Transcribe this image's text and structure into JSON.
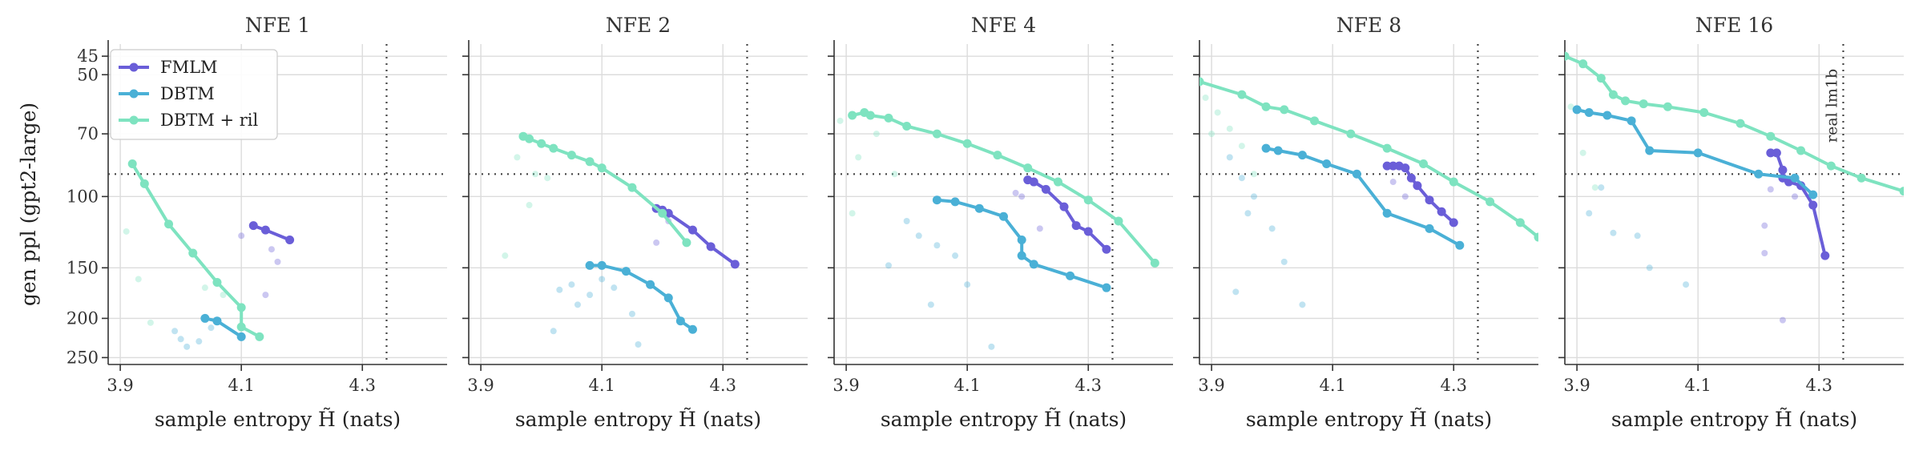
{
  "chart_data": {
    "type": "line",
    "ylabel": "gen ppl (gpt2-large)",
    "xlabel": "sample entropy H̃ (nats)",
    "xlim": [
      3.88,
      4.44
    ],
    "ylim": [
      260,
      42
    ],
    "yscale": "log",
    "xticks": [
      "3.9",
      "4.1",
      "4.3"
    ],
    "yticks": [
      "45",
      "50",
      "70",
      "100",
      "150",
      "200",
      "250"
    ],
    "grid": true,
    "legend_position": "top-left",
    "reference_lines": {
      "entropy": 4.34,
      "ppl": 88,
      "entropy_label": "real lm1b"
    },
    "colors": {
      "FMLM": "#6a5ed8",
      "DBTM": "#4ab0d6",
      "DBTM + ril": "#7ee3c0"
    },
    "panels": [
      {
        "title": "NFE 1",
        "series": [
          {
            "name": "FMLM",
            "x": [
              4.12,
              4.14,
              4.18
            ],
            "y": [
              118,
              121,
              128
            ]
          },
          {
            "name": "DBTM",
            "x": [
              4.04,
              4.06,
              4.1
            ],
            "y": [
              200,
              203,
              222
            ]
          },
          {
            "name": "DBTM + ril",
            "x": [
              3.92,
              3.94,
              3.98,
              4.02,
              4.06,
              4.1,
              4.1,
              4.13
            ],
            "y": [
              83,
              93,
              117,
              138,
              163,
              188,
              210,
              222
            ]
          }
        ],
        "scatter": [
          {
            "series": "DBTM + ril",
            "x": [
              3.91,
              3.93,
              4.04,
              4.07,
              3.95
            ],
            "y": [
              122,
              160,
              168,
              175,
              205
            ]
          },
          {
            "series": "DBTM",
            "x": [
              3.99,
              4.0,
              4.01,
              4.03,
              4.05
            ],
            "y": [
              215,
              225,
              235,
              228,
              211
            ]
          },
          {
            "series": "FMLM",
            "x": [
              4.1,
              4.15,
              4.16,
              4.14
            ],
            "y": [
              125,
              135,
              145,
              175
            ]
          }
        ]
      },
      {
        "title": "NFE 2",
        "series": [
          {
            "name": "FMLM",
            "x": [
              4.19,
              4.2,
              4.21,
              4.25,
              4.28,
              4.32
            ],
            "y": [
              107,
              108,
              110,
              121,
              133,
              147
            ]
          },
          {
            "name": "DBTM",
            "x": [
              4.08,
              4.1,
              4.14,
              4.18,
              4.21,
              4.23,
              4.25
            ],
            "y": [
              148,
              148,
              153,
              165,
              178,
              203,
              213
            ]
          },
          {
            "name": "DBTM + ril",
            "x": [
              3.97,
              3.98,
              4.0,
              4.02,
              4.05,
              4.08,
              4.1,
              4.15,
              4.2,
              4.24
            ],
            "y": [
              71,
              72,
              74,
              76,
              79,
              82,
              85,
              95,
              110,
              130
            ]
          }
        ],
        "scatter": [
          {
            "series": "DBTM + ril",
            "x": [
              3.96,
              3.99,
              3.94,
              3.98,
              4.01
            ],
            "y": [
              80,
              88,
              140,
              105,
              90
            ]
          },
          {
            "series": "DBTM",
            "x": [
              4.03,
              4.05,
              4.06,
              4.08,
              4.1,
              4.12,
              4.15,
              4.16,
              4.02
            ],
            "y": [
              170,
              165,
              185,
              175,
              160,
              168,
              195,
              232,
              215
            ]
          },
          {
            "name_ref": "",
            "series": "FMLM",
            "x": [
              4.21,
              4.19
            ],
            "y": [
              115,
              130
            ]
          }
        ]
      },
      {
        "title": "NFE 4",
        "series": [
          {
            "name": "FMLM",
            "x": [
              4.2,
              4.21,
              4.23,
              4.26,
              4.28,
              4.3,
              4.33
            ],
            "y": [
              91,
              92,
              96,
              106,
              118,
              122,
              135
            ]
          },
          {
            "name": "DBTM",
            "x": [
              4.05,
              4.08,
              4.12,
              4.16,
              4.19,
              4.19,
              4.21,
              4.27,
              4.33
            ],
            "y": [
              102,
              103,
              107,
              112,
              128,
              140,
              147,
              157,
              168
            ]
          },
          {
            "name": "DBTM + ril",
            "x": [
              3.91,
              3.93,
              3.94,
              3.97,
              4.0,
              4.05,
              4.1,
              4.15,
              4.2,
              4.25,
              4.3,
              4.35,
              4.41
            ],
            "y": [
              63,
              62,
              63,
              64,
              67,
              70,
              74,
              79,
              85,
              92,
              102,
              115,
              146
            ]
          }
        ],
        "scatter": [
          {
            "series": "DBTM + ril",
            "x": [
              3.89,
              3.92,
              3.95,
              3.98,
              3.91
            ],
            "y": [
              65,
              80,
              70,
              88,
              110
            ]
          },
          {
            "series": "DBTM",
            "x": [
              4.0,
              4.02,
              4.05,
              4.08,
              4.1,
              3.97,
              4.04,
              4.14
            ],
            "y": [
              115,
              125,
              132,
              140,
              165,
              148,
              185,
              235
            ]
          },
          {
            "series": "FMLM",
            "x": [
              4.18,
              4.19,
              4.22
            ],
            "y": [
              98,
              100,
              120
            ]
          }
        ]
      },
      {
        "title": "NFE 8",
        "series": [
          {
            "name": "FMLM",
            "x": [
              4.19,
              4.2,
              4.21,
              4.22,
              4.23,
              4.24,
              4.26,
              4.28,
              4.3
            ],
            "y": [
              84,
              84,
              84,
              85,
              90,
              94,
              102,
              109,
              116
            ]
          },
          {
            "name": "DBTM",
            "x": [
              3.99,
              4.01,
              4.05,
              4.09,
              4.14,
              4.19,
              4.26,
              4.31
            ],
            "y": [
              76,
              77,
              79,
              83,
              88,
              110,
              120,
              132
            ]
          },
          {
            "name": "DBTM + ril",
            "x": [
              3.88,
              3.95,
              3.99,
              4.02,
              4.07,
              4.13,
              4.19,
              4.25,
              4.3,
              4.36,
              4.41,
              4.44
            ],
            "y": [
              52,
              56,
              60,
              61,
              65,
              70,
              76,
              83,
              92,
              103,
              116,
              126
            ]
          }
        ],
        "scatter": [
          {
            "series": "DBTM + ril",
            "x": [
              3.89,
              3.91,
              3.93,
              3.95,
              3.97,
              3.9
            ],
            "y": [
              57,
              62,
              68,
              75,
              88,
              70
            ]
          },
          {
            "series": "DBTM",
            "x": [
              3.93,
              3.95,
              3.97,
              4.0,
              4.02,
              4.05,
              3.96,
              3.94
            ],
            "y": [
              80,
              90,
              100,
              120,
              145,
              185,
              110,
              172
            ]
          },
          {
            "series": "FMLM",
            "x": [
              4.2,
              4.22
            ],
            "y": [
              92,
              100
            ]
          }
        ]
      },
      {
        "title": "NFE 16",
        "series": [
          {
            "name": "FMLM",
            "x": [
              4.22,
              4.23,
              4.24,
              4.24,
              4.25,
              4.27,
              4.29,
              4.31
            ],
            "y": [
              78,
              78,
              86,
              90,
              92,
              94,
              105,
              140
            ]
          },
          {
            "name": "DBTM",
            "x": [
              3.9,
              3.92,
              3.95,
              3.99,
              4.02,
              4.1,
              4.2,
              4.26,
              4.29
            ],
            "y": [
              61,
              62,
              63,
              65,
              77,
              78,
              88,
              90,
              99
            ]
          },
          {
            "name": "DBTM + ril",
            "x": [
              3.88,
              3.91,
              3.94,
              3.96,
              3.98,
              4.01,
              4.05,
              4.11,
              4.17,
              4.22,
              4.27,
              4.32,
              4.37,
              4.44
            ],
            "y": [
              45,
              47,
              51,
              56,
              58,
              59,
              60,
              62,
              66,
              71,
              77,
              84,
              90,
              97
            ]
          }
        ],
        "scatter": [
          {
            "series": "DBTM + ril",
            "x": [
              3.89,
              3.91,
              3.93
            ],
            "y": [
              60,
              78,
              95
            ]
          },
          {
            "series": "DBTM",
            "x": [
              3.92,
              3.94,
              3.96,
              4.0,
              4.02,
              4.08
            ],
            "y": [
              110,
              95,
              123,
              125,
              150,
              165
            ]
          },
          {
            "series": "FMLM",
            "x": [
              4.21,
              4.21,
              4.22,
              4.24,
              4.26
            ],
            "y": [
              118,
              138,
              96,
              202,
              100
            ]
          }
        ]
      }
    ]
  }
}
